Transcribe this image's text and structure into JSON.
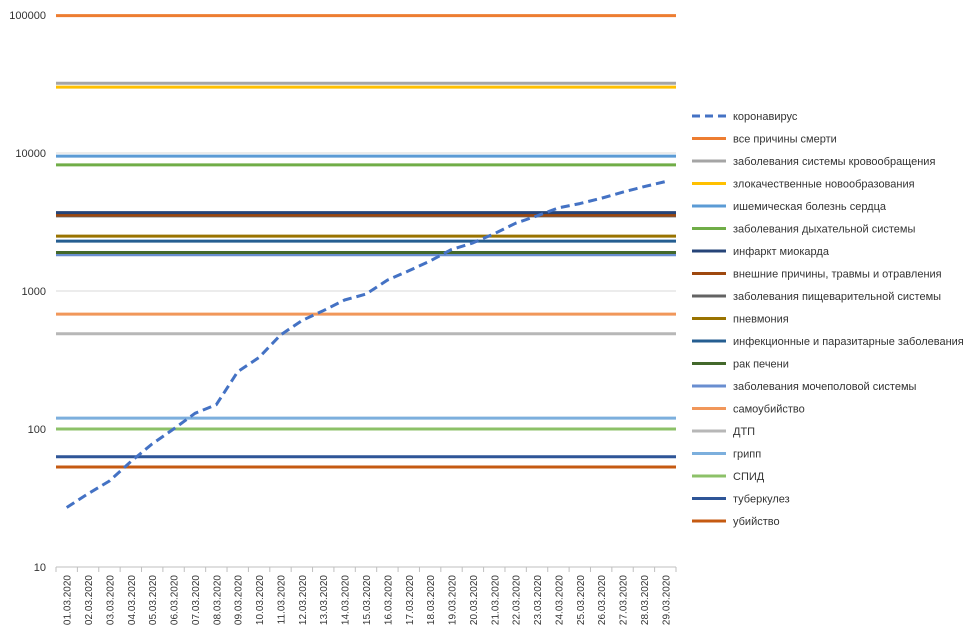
{
  "chart_data": {
    "type": "line",
    "title": "",
    "xlabel": "",
    "ylabel": "",
    "y_scale": "log",
    "ylim": [
      10,
      100000
    ],
    "y_ticks": [
      "10",
      "100",
      "1000",
      "10000",
      "100000"
    ],
    "grid": "horizontal",
    "legend_position": "right",
    "x": [
      "01.03.2020",
      "02.03.2020",
      "03.03.2020",
      "04.03.2020",
      "05.03.2020",
      "06.03.2020",
      "07.03.2020",
      "08.03.2020",
      "09.03.2020",
      "10.03.2020",
      "11.03.2020",
      "12.03.2020",
      "13.03.2020",
      "14.03.2020",
      "15.03.2020",
      "16.03.2020",
      "17.03.2020",
      "18.03.2020",
      "19.03.2020",
      "20.03.2020",
      "21.03.2020",
      "22.03.2020",
      "23.03.2020",
      "24.03.2020",
      "25.03.2020",
      "26.03.2020",
      "27.03.2020",
      "28.03.2020",
      "29.03.2020"
    ],
    "series": [
      {
        "name": "коронавирус",
        "color": "#4472C4",
        "dashed": true,
        "values": [
          27,
          34,
          42,
          58,
          78,
          100,
          130,
          150,
          260,
          330,
          480,
          610,
          720,
          860,
          950,
          1200,
          1400,
          1650,
          2000,
          2230,
          2600,
          3100,
          3500,
          4000,
          4300,
          4700,
          5200,
          5700,
          6200
        ]
      },
      {
        "name": "все причины смерти",
        "color": "#ED7D31",
        "value": 99000
      },
      {
        "name": "заболевания системы кровообращения",
        "color": "#A5A5A5",
        "value": 32000
      },
      {
        "name": "злокачественные новообразования",
        "color": "#FFC000",
        "value": 30000
      },
      {
        "name": "ишемическая болезнь сердца",
        "color": "#5B9BD5",
        "value": 9500
      },
      {
        "name": "заболевания дыхательной системы",
        "color": "#70AD47",
        "value": 8200
      },
      {
        "name": "инфаркт миокарда",
        "color": "#264478",
        "value": 3700
      },
      {
        "name": "внешние причины, травмы и отравления",
        "color": "#9E480E",
        "value": 3550
      },
      {
        "name": "заболевания пищеварительной системы",
        "color": "#636363",
        "value": 3500
      },
      {
        "name": "пневмония",
        "color": "#997300",
        "value": 2500
      },
      {
        "name": "инфекционные и паразитарные заболевания",
        "color": "#255E91",
        "value": 2300
      },
      {
        "name": "рак печени",
        "color": "#43682B",
        "value": 1900
      },
      {
        "name": "заболевания мочеполовой системы",
        "color": "#698ED0",
        "value": 1830
      },
      {
        "name": "самоубийство",
        "color": "#F1975A",
        "value": 680
      },
      {
        "name": "ДТП",
        "color": "#B7B7B7",
        "value": 490
      },
      {
        "name": "грипп",
        "color": "#7CAFDD",
        "value": 120
      },
      {
        "name": "СПИД",
        "color": "#8CC168",
        "value": 100
      },
      {
        "name": "туберкулез",
        "color": "#2E5597",
        "value": 63
      },
      {
        "name": "убийство",
        "color": "#C55A11",
        "value": 53
      }
    ]
  }
}
